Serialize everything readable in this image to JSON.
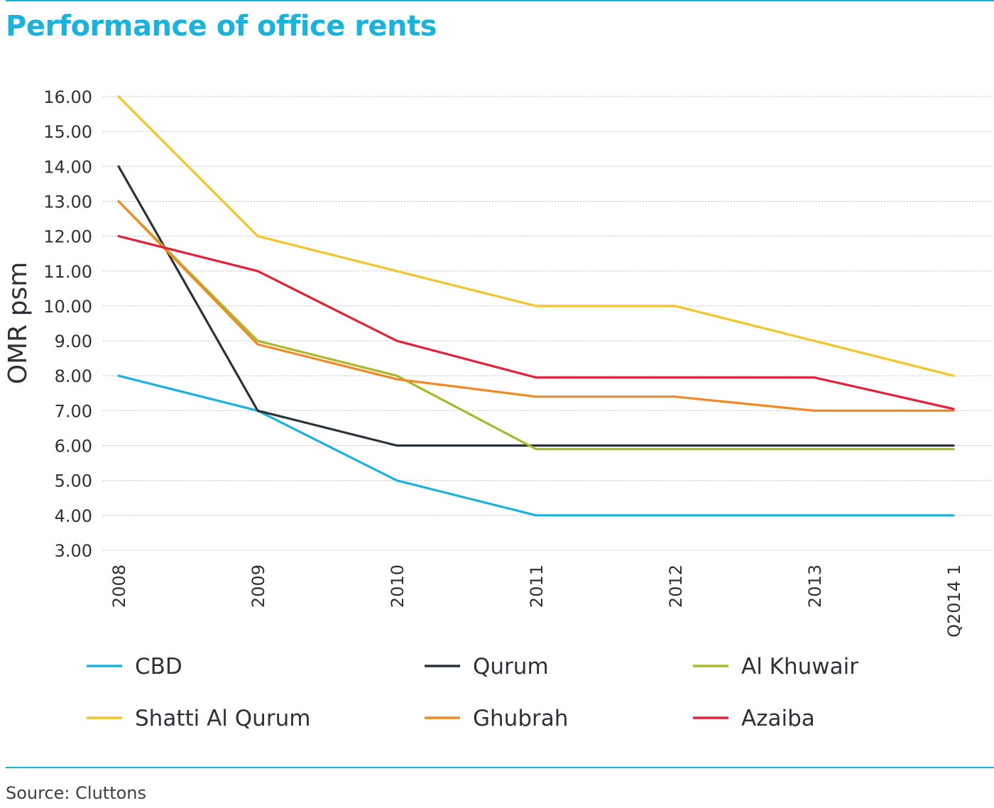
{
  "title": "Performance of office rents",
  "source": "Source: Cluttons",
  "chart_data": {
    "type": "line",
    "title": "Performance of office rents",
    "xlabel": "",
    "ylabel": "OMR psm",
    "categories": [
      "2008",
      "2009",
      "2010",
      "2011",
      "2012",
      "2013",
      "Q2014 1"
    ],
    "ylim": [
      3,
      16
    ],
    "yticks": [
      "3.00",
      "4.00",
      "5.00",
      "6.00",
      "7.00",
      "8.00",
      "9.00",
      "10.00",
      "11.00",
      "12.00",
      "13.00",
      "14.00",
      "15.00",
      "16.00"
    ],
    "grid": true,
    "legend_position": "bottom",
    "series": [
      {
        "name": "CBD",
        "color": "#1ab3de",
        "values": [
          8.0,
          7.0,
          5.0,
          4.0,
          4.0,
          4.0,
          4.0
        ]
      },
      {
        "name": "Qurum",
        "color": "#2b333a",
        "values": [
          14.0,
          7.0,
          6.0,
          6.0,
          6.0,
          6.0,
          6.0
        ]
      },
      {
        "name": "Al Khuwair",
        "color": "#a8b92c",
        "values": [
          13.0,
          9.0,
          8.0,
          5.9,
          5.9,
          5.9,
          5.9
        ]
      },
      {
        "name": "Shatti Al Qurum",
        "color": "#f7c325",
        "values": [
          16.0,
          12.0,
          11.0,
          10.0,
          10.0,
          9.0,
          8.0
        ]
      },
      {
        "name": "Ghubrah",
        "color": "#f08a24",
        "values": [
          13.0,
          8.9,
          7.9,
          7.4,
          7.4,
          7.0,
          7.0
        ]
      },
      {
        "name": "Azaiba",
        "color": "#e3213a",
        "values": [
          12.0,
          11.0,
          9.0,
          7.95,
          7.95,
          7.95,
          7.05
        ]
      }
    ]
  }
}
